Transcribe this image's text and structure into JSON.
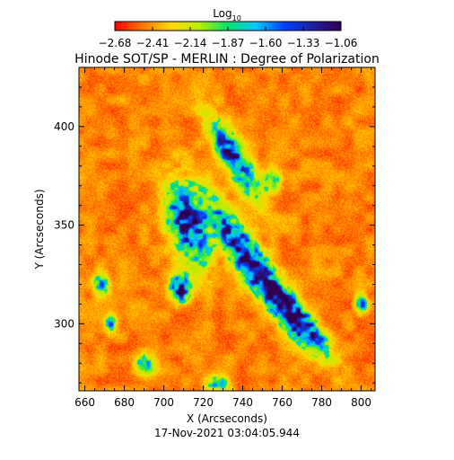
{
  "chart_data": {
    "type": "heatmap",
    "title": "Hinode SOT/SP - MERLIN : Degree of Polarization",
    "footer": "17-Nov-2021 03:04:05.944",
    "xlabel": "X (Arcseconds)",
    "ylabel": "Y (Arcseconds)",
    "xlim": [
      657,
      807
    ],
    "ylim": [
      266,
      430
    ],
    "x_ticks": [
      660,
      680,
      700,
      720,
      740,
      760,
      780,
      800
    ],
    "y_ticks": [
      300,
      350,
      400
    ],
    "colorbar": {
      "label_prefix": "Log",
      "label_subscript": "10",
      "range": [
        -2.68,
        -1.06
      ],
      "tick_labels": [
        "-2.68",
        "-2.41",
        "-2.14",
        "-1.87",
        "-1.60",
        "-1.33",
        "-1.06"
      ]
    },
    "colormap": [
      "#ff0000",
      "#ff7a00",
      "#ffd800",
      "#b8f000",
      "#00e070",
      "#00c8ff",
      "#0040ff",
      "#2020a0",
      "#300050"
    ],
    "background_color": "#ff7a1c",
    "features": [
      {
        "x": 745,
        "y": 330,
        "sx": 7,
        "sy": 38,
        "rot": 35,
        "amp": 1.05
      },
      {
        "x": 712,
        "y": 350,
        "sx": 9,
        "sy": 20,
        "rot": 20,
        "amp": 0.9
      },
      {
        "x": 735,
        "y": 385,
        "sx": 6,
        "sy": 22,
        "rot": 30,
        "amp": 0.85
      },
      {
        "x": 708,
        "y": 318,
        "sx": 5,
        "sy": 7,
        "rot": 0,
        "amp": 0.95
      },
      {
        "x": 770,
        "y": 300,
        "sx": 6,
        "sy": 18,
        "rot": 40,
        "amp": 0.8
      },
      {
        "x": 690,
        "y": 280,
        "sx": 5,
        "sy": 6,
        "rot": 0,
        "amp": 0.55
      },
      {
        "x": 668,
        "y": 320,
        "sx": 4,
        "sy": 7,
        "rot": 0,
        "amp": 0.55
      },
      {
        "x": 673,
        "y": 300,
        "sx": 3,
        "sy": 4,
        "rot": 0,
        "amp": 0.6
      },
      {
        "x": 800,
        "y": 310,
        "sx": 3,
        "sy": 5,
        "rot": 0,
        "amp": 0.55
      },
      {
        "x": 755,
        "y": 372,
        "sx": 4,
        "sy": 6,
        "rot": 0,
        "amp": 0.5
      },
      {
        "x": 727,
        "y": 270,
        "sx": 6,
        "sy": 4,
        "rot": 0,
        "amp": 0.5
      }
    ]
  }
}
